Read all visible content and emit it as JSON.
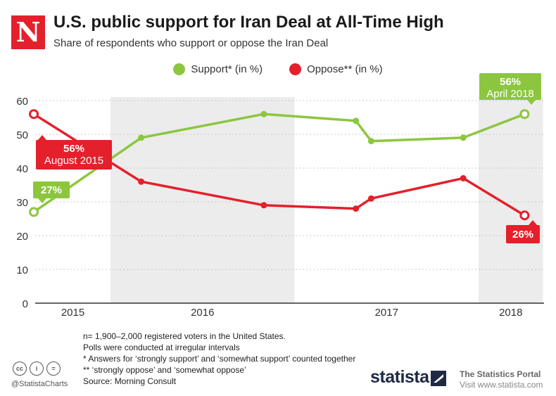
{
  "header": {
    "logo_letter": "N",
    "title": "U.S. public support for Iran Deal at All-Time High",
    "subtitle": "Share of respondents who support or oppose the Iran Deal"
  },
  "legend": [
    {
      "label": "Support* (in %)",
      "color": "#8cc63f"
    },
    {
      "label": "Oppose** (in %)",
      "color": "#e3202b"
    }
  ],
  "chart_data": {
    "type": "line",
    "y_ticks": [
      "60",
      "50",
      "40",
      "30",
      "20",
      "10",
      "0"
    ],
    "ylim": [
      0,
      60
    ],
    "x_tick_labels": [
      "2015",
      "2016",
      "2017",
      "2018"
    ],
    "shaded_periods": [
      "2016",
      "2018"
    ],
    "grid": true,
    "series": [
      {
        "name": "Support* (in %)",
        "color": "#8cc63f",
        "x": [
          "2015-08",
          "2016-03",
          "2016-11",
          "2017-05",
          "2017-06",
          "2017-12",
          "2018-04"
        ],
        "values": [
          27,
          49,
          56,
          54,
          48,
          49,
          56
        ]
      },
      {
        "name": "Oppose** (in %)",
        "color": "#e3202b",
        "x": [
          "2015-08",
          "2016-03",
          "2016-11",
          "2017-05",
          "2017-06",
          "2017-12",
          "2018-04"
        ],
        "values": [
          56,
          36,
          29,
          28,
          31,
          37,
          26
        ]
      }
    ],
    "annotations": [
      {
        "line1": "56%",
        "line2": "April 2018",
        "series": "Support* (in %)",
        "color": "#8cc63f"
      },
      {
        "line1": "27%",
        "line2": "",
        "series": "Support* (in %)",
        "color": "#8cc63f"
      },
      {
        "line1": "56%",
        "line2": "August 2015",
        "series": "Oppose** (in %)",
        "color": "#e3202b"
      },
      {
        "line1": "26%",
        "line2": "",
        "series": "Oppose** (in %)",
        "color": "#e3202b"
      }
    ]
  },
  "notes": [
    "n= 1,900–2,000 registered voters in the United States.",
    "Polls were conducted at irregular intervals",
    "*   Answers for ‘strongly support’ and ‘somewhat support’ counted together",
    "** ‘strongly oppose’ and ‘somewhat oppose’",
    "Source: Morning Consult"
  ],
  "footer": {
    "cc_icons": [
      "cc",
      "i",
      "="
    ],
    "handle": "@StatistaCharts",
    "brand": "statista",
    "portal_title": "The Statistics Portal",
    "portal_url": "Visit www.statista.com"
  }
}
